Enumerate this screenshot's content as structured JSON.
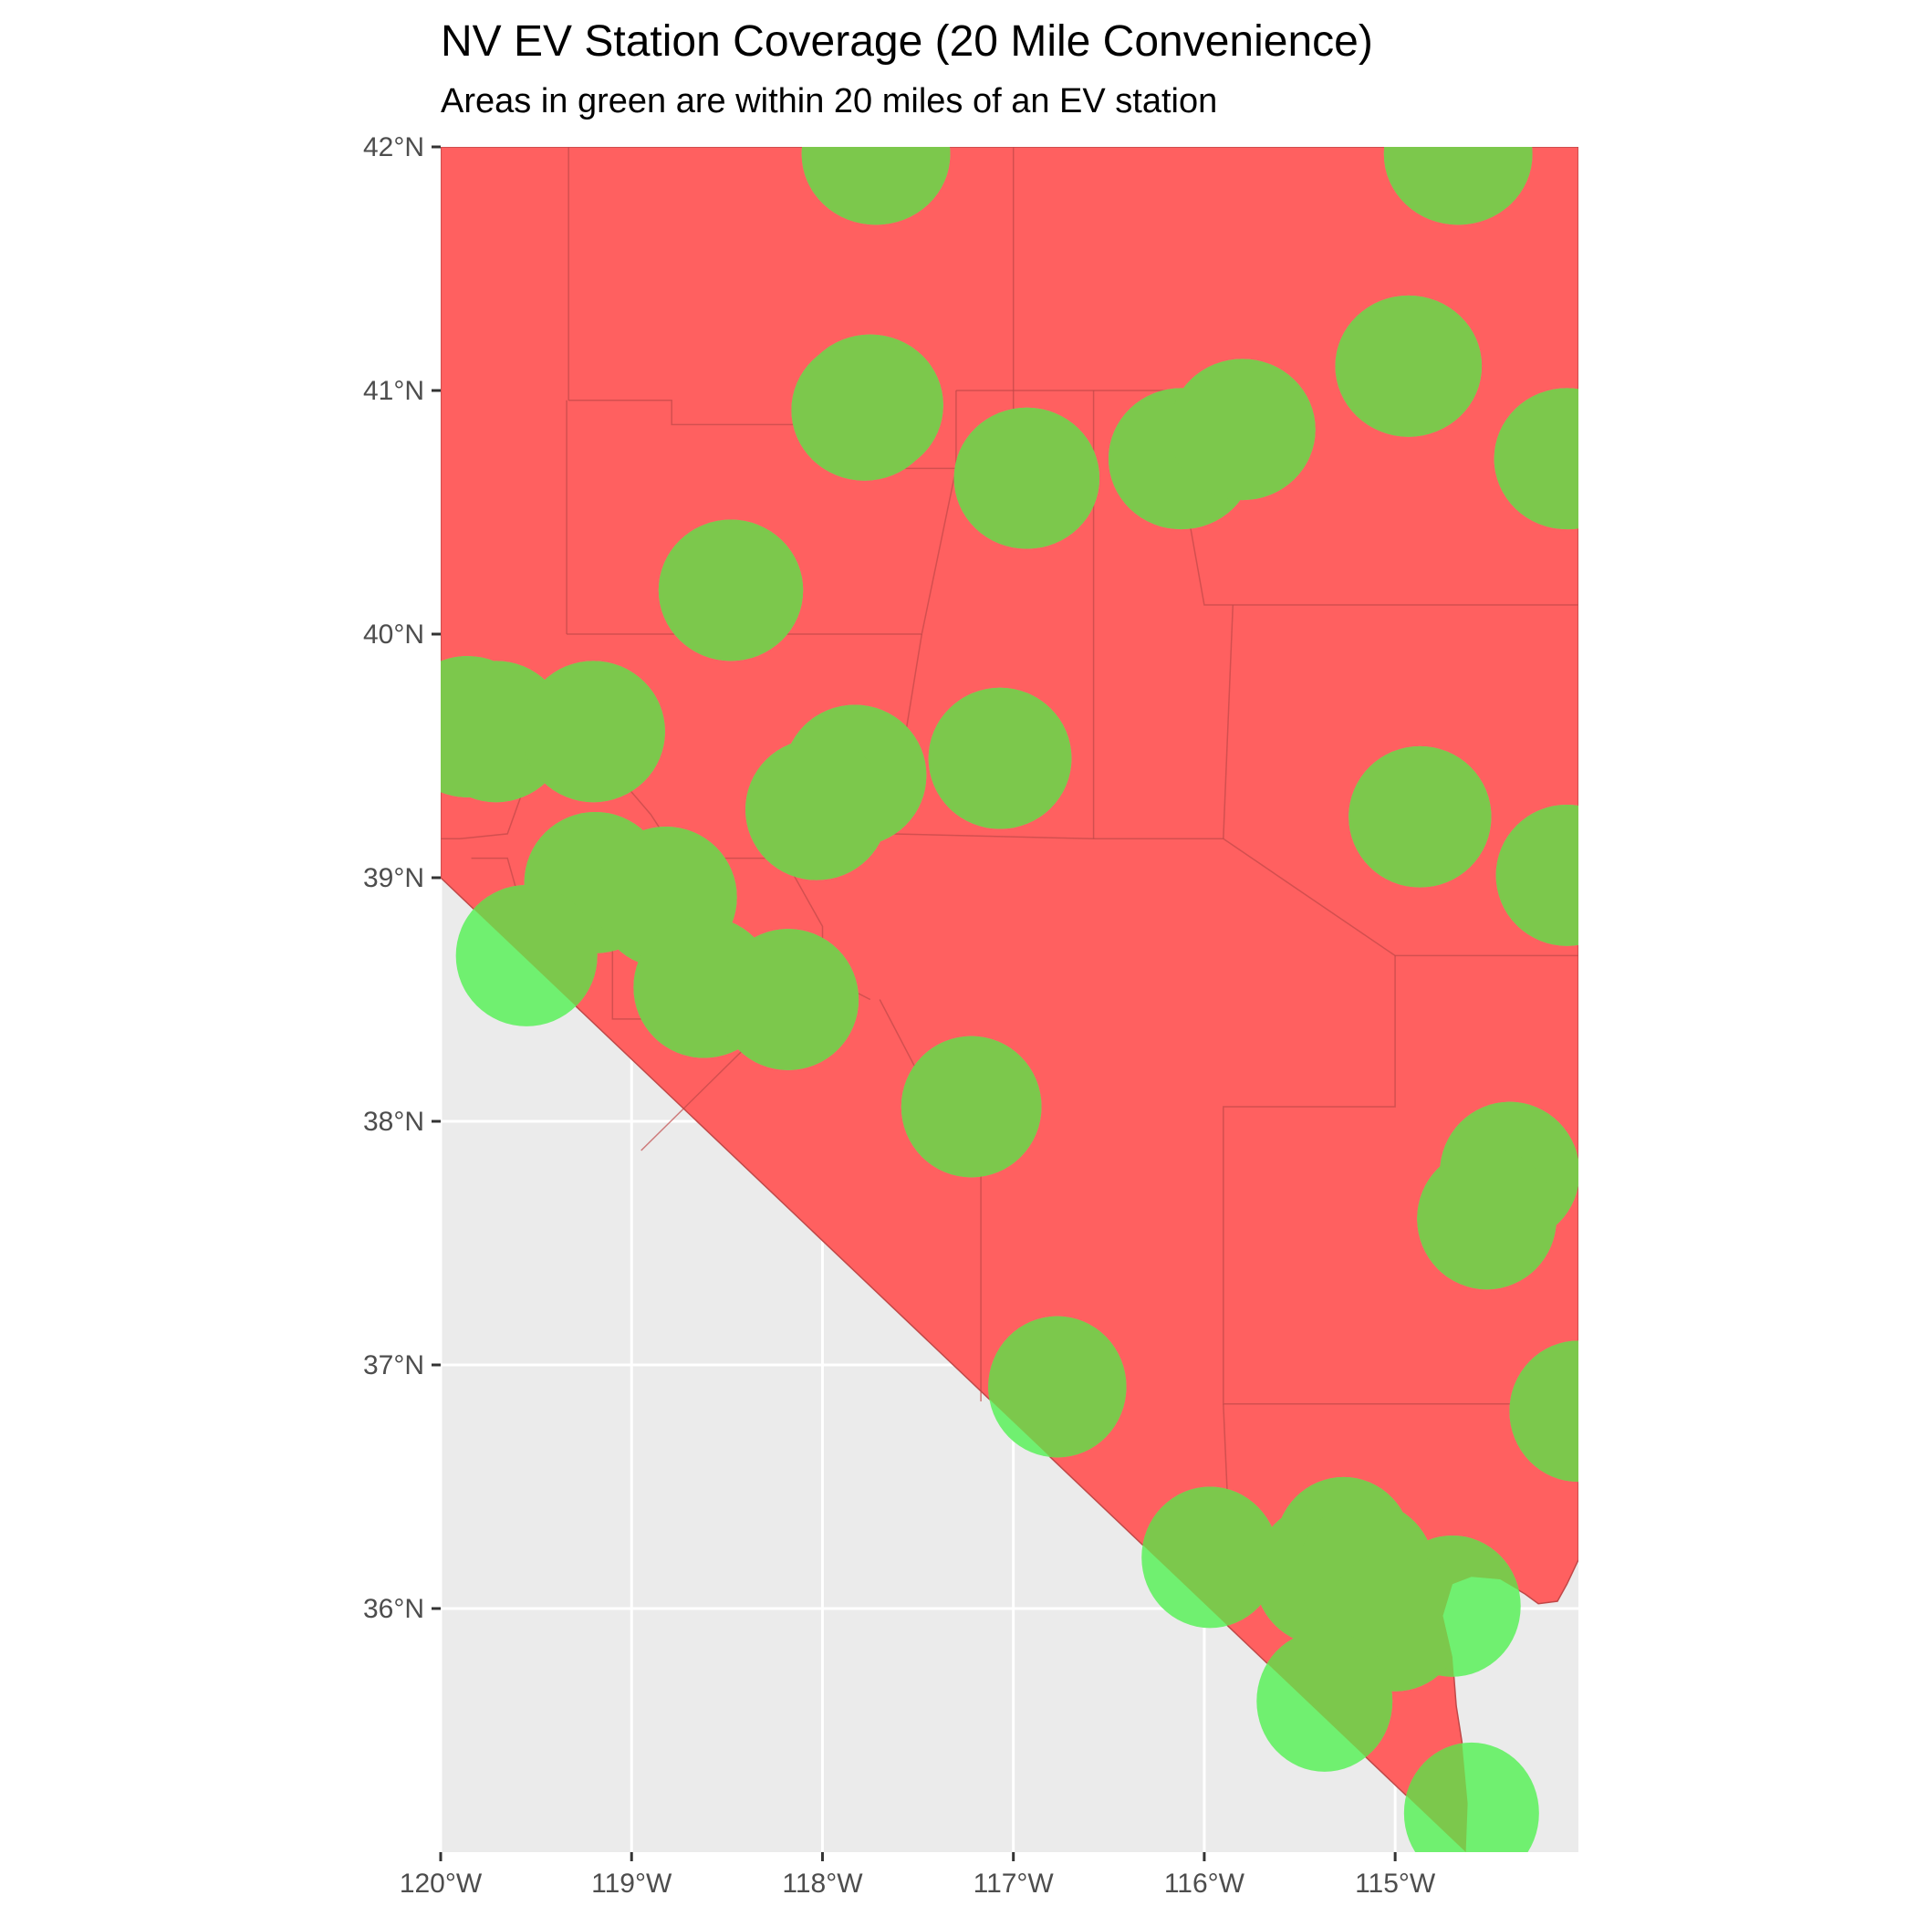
{
  "title": "NV EV Station Coverage (20 Mile Convenience)",
  "subtitle": "Areas in green are within 20 miles of an EV station",
  "colors": {
    "panel_background": "#ebebeb",
    "gridline": "#ffffff",
    "state_fill": "#ff6060",
    "county_border": "#c04848",
    "coverage_fill": "#70f070",
    "coverage_opacity": 1.0
  },
  "axes": {
    "x": {
      "range": [
        -120.0,
        -114.04
      ],
      "ticks": [
        -120,
        -119,
        -118,
        -117,
        -116,
        -115
      ],
      "tick_labels": [
        "120°W",
        "119°W",
        "118°W",
        "117°W",
        "116°W",
        "115°W"
      ]
    },
    "y": {
      "range": [
        35.0,
        42.0
      ],
      "ticks": [
        36,
        37,
        38,
        39,
        40,
        41,
        42
      ],
      "tick_labels": [
        "36°N",
        "37°N",
        "38°N",
        "39°N",
        "40°N",
        "41°N",
        "42°N"
      ]
    }
  },
  "chart_data": {
    "type": "map",
    "region": "Nevada",
    "coverage_radius_miles": 20,
    "state_outline": [
      [
        -120.0,
        42.0
      ],
      [
        -114.04,
        42.0
      ],
      [
        -114.04,
        36.2
      ],
      [
        -114.1,
        36.1
      ],
      [
        -114.15,
        36.03
      ],
      [
        -114.25,
        36.02
      ],
      [
        -114.32,
        36.06
      ],
      [
        -114.45,
        36.12
      ],
      [
        -114.6,
        36.13
      ],
      [
        -114.7,
        36.1
      ],
      [
        -114.75,
        35.97
      ],
      [
        -114.7,
        35.8
      ],
      [
        -114.68,
        35.6
      ],
      [
        -114.65,
        35.45
      ],
      [
        -114.62,
        35.2
      ],
      [
        -114.63,
        35.0
      ],
      [
        -120.0,
        39.0
      ]
    ],
    "county_lines": [
      [
        [
          -119.33,
          42.0
        ],
        [
          -119.33,
          40.96
        ]
      ],
      [
        [
          -119.33,
          40.96
        ],
        [
          -118.79,
          40.96
        ],
        [
          -118.79,
          40.86
        ],
        [
          -117.64,
          40.86
        ],
        [
          -117.64,
          40.68
        ],
        [
          -117.0,
          40.68
        ]
      ],
      [
        [
          -117.0,
          42.0
        ],
        [
          -117.0,
          40.64
        ]
      ],
      [
        [
          -117.0,
          40.64
        ],
        [
          -117.3,
          40.68
        ],
        [
          -117.48,
          40.0
        ],
        [
          -119.34,
          40.0
        ]
      ],
      [
        [
          -119.34,
          40.96
        ],
        [
          -119.34,
          40.0
        ]
      ],
      [
        [
          -117.3,
          40.68
        ],
        [
          -117.3,
          41.0
        ]
      ],
      [
        [
          -117.3,
          41.0
        ],
        [
          -116.2,
          41.0
        ],
        [
          -115.82,
          41.0
        ]
      ],
      [
        [
          -116.58,
          41.0
        ],
        [
          -116.58,
          39.16
        ]
      ],
      [
        [
          -116.2,
          41.0
        ],
        [
          -116.0,
          40.12
        ],
        [
          -114.04,
          40.12
        ]
      ],
      [
        [
          -115.85,
          40.12
        ],
        [
          -115.9,
          39.16
        ]
      ],
      [
        [
          -117.65,
          39.18
        ],
        [
          -117.48,
          40.0
        ]
      ],
      [
        [
          -119.2,
          39.78
        ],
        [
          -119.25,
          39.58
        ],
        [
          -118.9,
          39.26
        ],
        [
          -118.75,
          39.08
        ],
        [
          -118.2,
          39.08
        ],
        [
          -117.8,
          39.12
        ],
        [
          -117.65,
          39.18
        ],
        [
          -116.58,
          39.16
        ],
        [
          -115.9,
          39.16
        ],
        [
          -115.0,
          38.68
        ],
        [
          -114.04,
          38.68
        ]
      ],
      [
        [
          -119.6,
          39.62
        ],
        [
          -119.55,
          39.4
        ],
        [
          -119.65,
          39.18
        ],
        [
          -119.9,
          39.16
        ],
        [
          -120.0,
          39.16
        ]
      ],
      [
        [
          -119.84,
          39.08
        ],
        [
          -119.65,
          39.08
        ],
        [
          -119.6,
          38.94
        ],
        [
          -119.6,
          38.68
        ]
      ],
      [
        [
          -119.05,
          39.08
        ],
        [
          -119.1,
          38.88
        ],
        [
          -119.1,
          38.42
        ],
        [
          -118.9,
          38.42
        ]
      ],
      [
        [
          -118.2,
          39.08
        ],
        [
          -118.0,
          38.8
        ],
        [
          -118.0,
          38.6
        ],
        [
          -117.75,
          38.5
        ]
      ],
      [
        [
          -118.2,
          38.46
        ],
        [
          -118.95,
          37.88
        ]
      ],
      [
        [
          -117.7,
          38.5
        ],
        [
          -117.4,
          38.05
        ],
        [
          -117.17,
          38.0
        ],
        [
          -117.17,
          36.85
        ]
      ],
      [
        [
          -115.0,
          38.68
        ],
        [
          -115.0,
          38.06
        ],
        [
          -115.9,
          38.06
        ],
        [
          -115.9,
          36.84
        ],
        [
          -115.0,
          36.84
        ],
        [
          -114.04,
          36.84
        ]
      ],
      [
        [
          -115.9,
          36.84
        ],
        [
          -115.85,
          35.95
        ]
      ]
    ],
    "coverage_circles": [
      [
        -117.72,
        41.97
      ],
      [
        -114.67,
        41.97
      ],
      [
        -117.75,
        40.94
      ],
      [
        -117.78,
        40.92
      ],
      [
        -114.93,
        41.1
      ],
      [
        -116.93,
        40.64
      ],
      [
        -116.12,
        40.72
      ],
      [
        -115.8,
        40.84
      ],
      [
        -114.1,
        40.72
      ],
      [
        -118.48,
        40.18
      ],
      [
        -119.86,
        39.62
      ],
      [
        -119.71,
        39.6
      ],
      [
        -119.2,
        39.6
      ],
      [
        -117.83,
        39.42
      ],
      [
        -118.03,
        39.28
      ],
      [
        -117.07,
        39.49
      ],
      [
        -114.87,
        39.25
      ],
      [
        -114.1,
        39.01
      ],
      [
        -119.19,
        38.98
      ],
      [
        -118.82,
        38.92
      ],
      [
        -119.55,
        38.68
      ],
      [
        -118.62,
        38.55
      ],
      [
        -118.18,
        38.5
      ],
      [
        -117.22,
        38.06
      ],
      [
        -114.4,
        37.79
      ],
      [
        -114.52,
        37.6
      ],
      [
        -116.77,
        36.91
      ],
      [
        -114.04,
        36.81
      ],
      [
        -115.97,
        36.21
      ],
      [
        -115.27,
        36.25
      ],
      [
        -115.38,
        36.14
      ],
      [
        -115.15,
        36.15
      ],
      [
        -114.7,
        36.01
      ],
      [
        -115.0,
        35.95
      ],
      [
        -115.37,
        35.62
      ],
      [
        -114.6,
        35.16
      ]
    ]
  }
}
